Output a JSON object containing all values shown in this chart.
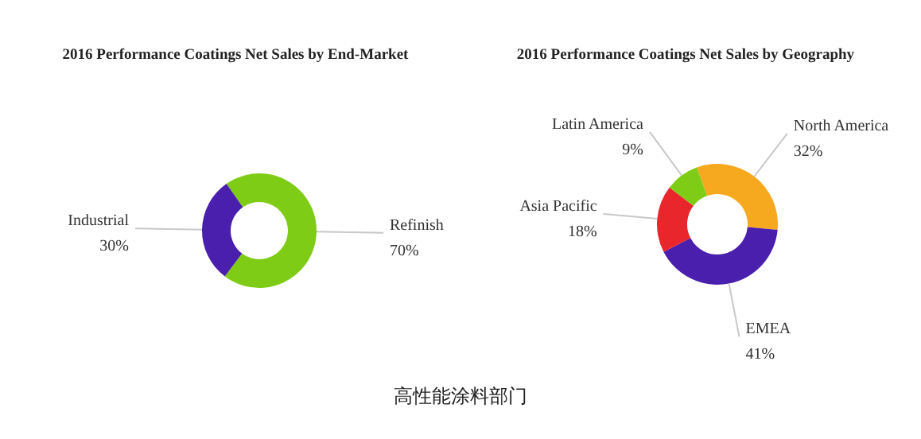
{
  "chart_data": [
    {
      "type": "donut",
      "title": "2016 Performance Coatings Net Sales by End-Market",
      "categories": [
        "Refinish",
        "Industrial"
      ],
      "values": [
        70,
        30
      ],
      "value_labels": [
        "70%",
        "30%"
      ],
      "colors": [
        "#7fcc17",
        "#4a1fae"
      ],
      "legend": false
    },
    {
      "type": "donut",
      "title": "2016 Performance Coatings Net Sales by Geography",
      "categories": [
        "North America",
        "EMEA",
        "Asia Pacific",
        "Latin America"
      ],
      "values": [
        32,
        41,
        18,
        9
      ],
      "value_labels": [
        "32%",
        "41%",
        "18%",
        "9%"
      ],
      "colors": [
        "#f6a91f",
        "#4a1fae",
        "#e8262b",
        "#7fcc17"
      ],
      "legend": false,
      "annotations": [
        "高性能涂料部门"
      ]
    }
  ]
}
